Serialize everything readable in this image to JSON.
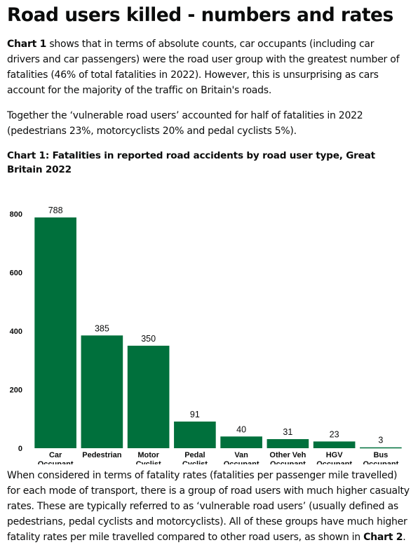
{
  "heading": "Road users killed - numbers and rates",
  "intro": {
    "p1_bold": "Chart 1",
    "p1_text": " shows that in terms of absolute counts, car occupants (including car drivers and car passengers) were the road user group with the greatest number of fatalities (46% of total fatalities in 2022). However, this is unsurprising as cars account for the majority of the traffic on Britain's roads.",
    "p2_text": "Together the ‘vulnerable road users’ accounted for half of fatalities in 2022 (pedestrians 23%, motorcyclists 20% and pedal cyclists 5%)."
  },
  "chart_title": "Chart 1: Fatalities in reported road accidents by road user type, Great Britain 2022",
  "chart_data": {
    "type": "bar",
    "title": "Chart 1: Fatalities in reported road accidents by road user type, Great Britain 2022",
    "categories": [
      [
        "Car",
        "Occupant"
      ],
      [
        "Pedestrian"
      ],
      [
        "Motor",
        "Cyclist"
      ],
      [
        "Pedal",
        "Cyclist"
      ],
      [
        "Van",
        "Occupant"
      ],
      [
        "Other Veh",
        "Occupant"
      ],
      [
        "HGV",
        "Occupant"
      ],
      [
        "Bus",
        "Occupant"
      ]
    ],
    "values": [
      788,
      385,
      350,
      91,
      40,
      31,
      23,
      3
    ],
    "yticks": [
      0,
      200,
      400,
      600,
      800
    ],
    "ylim": [
      0,
      800
    ],
    "xlabel": "",
    "ylabel": "",
    "grid": false,
    "bar_color": "#00703c"
  },
  "closing": {
    "text": "When considered in terms of fatality rates (fatalities per passenger mile travelled) for each mode of transport, there is a group of road users with much higher casualty rates. These are typically referred to as ‘vulnerable road users’ (usually defined as pedestrians, pedal cyclists and motorcyclists). All of these groups have much higher fatality rates per mile travelled compared to other road users, as shown in ",
    "link_bold": "Chart 2",
    "end": "."
  }
}
